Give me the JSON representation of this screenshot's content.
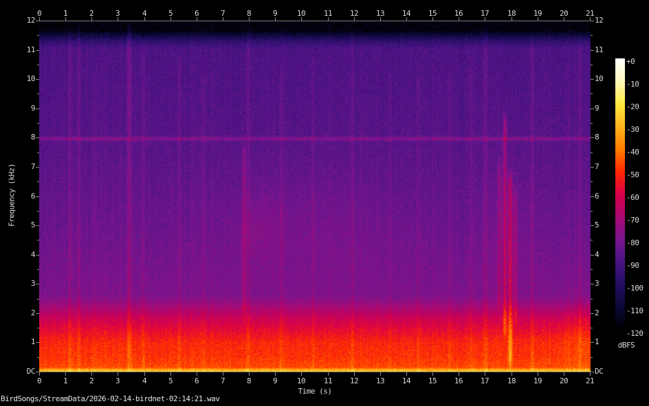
{
  "title": "BirdSongs/StreamData/2026-02-14-birdnet-02:14:21.wav",
  "chart_data": {
    "type": "heatmap",
    "subtype": "audio-spectrogram",
    "title": "BirdSongs/StreamData/2026-02-14-birdnet-02:14:21.wav",
    "xlabel": "Time (s)",
    "ylabel": "Frequency (kHz)",
    "xlim": [
      0,
      21
    ],
    "ylim_khz": [
      0,
      12
    ],
    "x_ticks": [
      "0",
      "1",
      "2",
      "3",
      "4",
      "5",
      "6",
      "7",
      "8",
      "9",
      "10",
      "11",
      "12",
      "13",
      "14",
      "15",
      "16",
      "17",
      "18",
      "19",
      "20",
      "21"
    ],
    "y_ticks": [
      {
        "v": 12,
        "label": "12"
      },
      {
        "v": 11,
        "label": "11"
      },
      {
        "v": 10,
        "label": "10"
      },
      {
        "v": 9,
        "label": "9"
      },
      {
        "v": 8,
        "label": "8"
      },
      {
        "v": 7,
        "label": "7"
      },
      {
        "v": 6,
        "label": "6"
      },
      {
        "v": 5,
        "label": "5"
      },
      {
        "v": 4,
        "label": "4"
      },
      {
        "v": 3,
        "label": "3"
      },
      {
        "v": 2,
        "label": "2"
      },
      {
        "v": 1,
        "label": "1"
      },
      {
        "v": 0,
        "label": "DC"
      }
    ],
    "y_minor_ticks": [
      0.5,
      1.5,
      2.5,
      3.5,
      4.5,
      5.5,
      6.5,
      7.5,
      8.5,
      9.5,
      10.5,
      11.5
    ],
    "colorbar": {
      "label": "dBFS",
      "range_db": [
        -120,
        0
      ],
      "ticks": [
        "+0",
        "-10",
        "-20",
        "-30",
        "-40",
        "-50",
        "-60",
        "-70",
        "-80",
        "-90",
        "-100",
        "-110",
        "-120"
      ],
      "palette": [
        {
          "db": 0,
          "color": "#ffffff"
        },
        {
          "db": -10,
          "color": "#fff7bd"
        },
        {
          "db": -20,
          "color": "#ffe93f"
        },
        {
          "db": -30,
          "color": "#ffb520"
        },
        {
          "db": -40,
          "color": "#ff7d00"
        },
        {
          "db": -50,
          "color": "#ff2800"
        },
        {
          "db": -60,
          "color": "#d7004c"
        },
        {
          "db": -70,
          "color": "#a80872"
        },
        {
          "db": -80,
          "color": "#7a1690"
        },
        {
          "db": -90,
          "color": "#471383"
        },
        {
          "db": -100,
          "color": "#230e62"
        },
        {
          "db": -110,
          "color": "#0b0736"
        },
        {
          "db": -120,
          "color": "#000000"
        }
      ]
    },
    "noise_profile": [
      {
        "f": 12.0,
        "db": -118
      },
      {
        "f": 11.68,
        "db": -118
      },
      {
        "f": 11.3,
        "db": -96
      },
      {
        "f": 11.05,
        "db": -89
      },
      {
        "f": 8.0,
        "db": -87
      },
      {
        "f": 5.0,
        "db": -83
      },
      {
        "f": 2.6,
        "db": -79
      },
      {
        "f": 1.8,
        "db": -62
      },
      {
        "f": 1.0,
        "db": -51
      },
      {
        "f": 0.5,
        "db": -49
      },
      {
        "f": 0.15,
        "db": -46
      },
      {
        "f": 0.07,
        "db": -30
      },
      {
        "f": 0.0,
        "db": -26
      }
    ],
    "noise_sigma_db": 7,
    "hline": {
      "f_khz": 7.97,
      "gain_db": 9,
      "sigma_khz": 0.05
    },
    "events": [
      {
        "t": 1.15,
        "f_lo": 0,
        "f_hi": 11.6,
        "gain": 5,
        "w": 0.05
      },
      {
        "t": 1.5,
        "f_lo": 0,
        "f_hi": 11.6,
        "gain": 4,
        "w": 0.05
      },
      {
        "t": 2.1,
        "f_lo": 0,
        "f_hi": 10,
        "gain": 2.5,
        "w": 0.05
      },
      {
        "t": 3.42,
        "f_lo": 0,
        "f_hi": 11.6,
        "gain": 8,
        "w": 0.06
      },
      {
        "t": 3.95,
        "f_lo": 0,
        "f_hi": 11,
        "gain": 4,
        "w": 0.05
      },
      {
        "t": 5.35,
        "f_lo": 0,
        "f_hi": 10.5,
        "gain": 3,
        "w": 0.05
      },
      {
        "t": 6.25,
        "f_lo": 0,
        "f_hi": 10,
        "gain": 2.5,
        "w": 0.05
      },
      {
        "t": 7.8,
        "f_lo": 2.2,
        "f_hi": 7.5,
        "gain": 9,
        "w": 0.045
      },
      {
        "t": 7.95,
        "f_lo": 0,
        "f_hi": 11.6,
        "gain": 4,
        "w": 0.05
      },
      {
        "t": 9.2,
        "f_lo": 0,
        "f_hi": 10,
        "gain": 2.5,
        "w": 0.05
      },
      {
        "t": 10.45,
        "f_lo": 0,
        "f_hi": 10.5,
        "gain": 3,
        "w": 0.05
      },
      {
        "t": 11.95,
        "f_lo": 0,
        "f_hi": 11.5,
        "gain": 3.5,
        "w": 0.05
      },
      {
        "t": 13.35,
        "f_lo": 0,
        "f_hi": 10,
        "gain": 2.5,
        "w": 0.05
      },
      {
        "t": 14.45,
        "f_lo": 0,
        "f_hi": 10,
        "gain": 2.5,
        "w": 0.05
      },
      {
        "t": 15.65,
        "f_lo": 0,
        "f_hi": 10,
        "gain": 2.5,
        "w": 0.05
      },
      {
        "t": 16.45,
        "f_lo": 0,
        "f_hi": 10.5,
        "gain": 3,
        "w": 0.05
      },
      {
        "t": 17.0,
        "f_lo": 0,
        "f_hi": 11.5,
        "gain": 5,
        "w": 0.05
      },
      {
        "t": 17.55,
        "f_lo": 2.5,
        "f_hi": 7,
        "gain": 8,
        "w": 0.05
      },
      {
        "t": 17.75,
        "f_lo": 1.5,
        "f_hi": 8.5,
        "gain": 15,
        "w": 0.05
      },
      {
        "t": 17.95,
        "f_lo": 0.5,
        "f_hi": 6.5,
        "gain": 17,
        "w": 0.055
      },
      {
        "t": 18.15,
        "f_lo": 2,
        "f_hi": 6,
        "gain": 9,
        "w": 0.05
      },
      {
        "t": 18.8,
        "f_lo": 0,
        "f_hi": 11,
        "gain": 4,
        "w": 0.05
      },
      {
        "t": 20.6,
        "f_lo": 0,
        "f_hi": 11,
        "gain": 4,
        "w": 0.05
      }
    ],
    "blobs": [
      {
        "t": 10.0,
        "f": 5.0,
        "gain": 2.5,
        "tw": 2.5,
        "fw": 1.2
      },
      {
        "t": 8.4,
        "f": 5.0,
        "gain": 3.0,
        "tw": 0.5,
        "fw": 0.8
      },
      {
        "t": 17.8,
        "f": 4.5,
        "gain": 3.0,
        "tw": 0.6,
        "fw": 2.0
      },
      {
        "t": 20.8,
        "f": 1.3,
        "gain": 4.0,
        "tw": 0.7,
        "fw": 0.9
      }
    ]
  }
}
